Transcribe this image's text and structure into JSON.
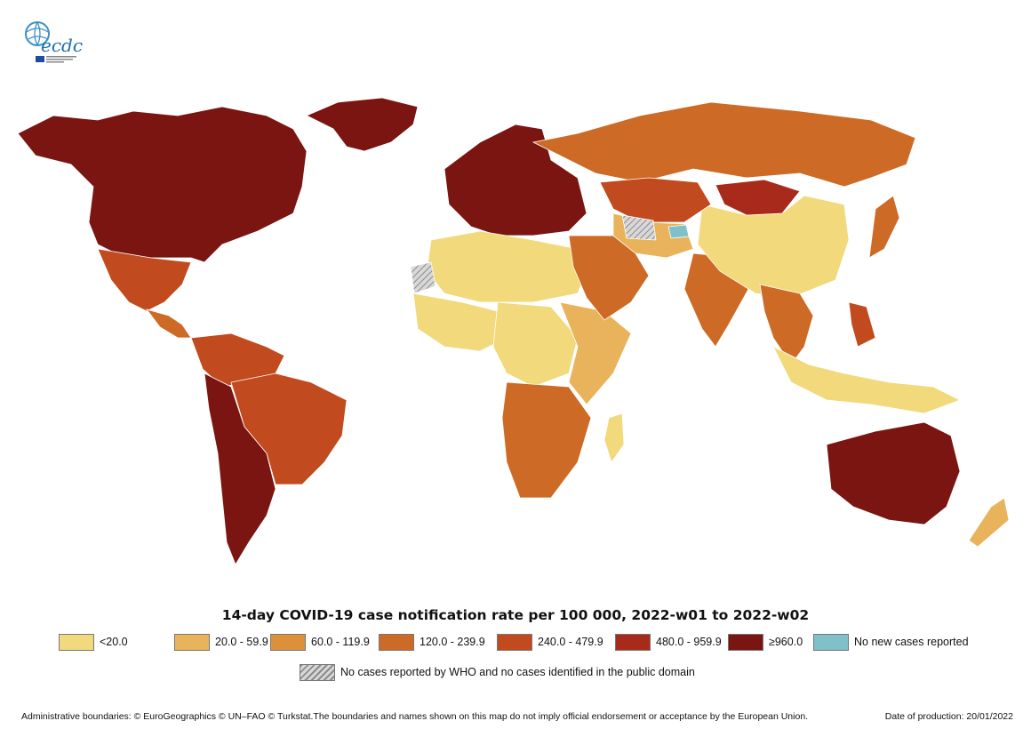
{
  "logo": {
    "text": "ecdc",
    "subtitle": "EUROPEAN CENTRE FOR DISEASE PREVENTION AND CONTROL"
  },
  "map": {
    "title": "14-day COVID-19 case notification rate per 100 000, 2022-w01 to 2022-w02",
    "legend": [
      {
        "label": "<20.0",
        "color": "#f2d97c"
      },
      {
        "label": "20.0 - 59.9",
        "color": "#e8b35a"
      },
      {
        "label": "60.0 - 119.9",
        "color": "#dc9138"
      },
      {
        "label": "120.0 - 239.9",
        "color": "#cd6a25"
      },
      {
        "label": "240.0 - 479.9",
        "color": "#c14a1e"
      },
      {
        "label": "480.0 - 959.9",
        "color": "#a82a1a"
      },
      {
        "label": "≥960.0",
        "color": "#7a1511"
      },
      {
        "label": "No new cases reported",
        "color": "#80c0c8"
      }
    ],
    "no_data_label": "No cases reported by WHO and no cases identified in the public domain",
    "regions": [
      {
        "name": "north-america",
        "class": 6
      },
      {
        "name": "mexico",
        "class": 4
      },
      {
        "name": "central-america",
        "class": 3
      },
      {
        "name": "south-america-north",
        "class": 4
      },
      {
        "name": "brazil",
        "class": 4
      },
      {
        "name": "south-america-south",
        "class": 6
      },
      {
        "name": "greenland",
        "class": 6
      },
      {
        "name": "europe",
        "class": 6
      },
      {
        "name": "russia",
        "class": 3
      },
      {
        "name": "north-africa",
        "class": 0
      },
      {
        "name": "west-africa",
        "class": 0
      },
      {
        "name": "central-africa",
        "class": 0
      },
      {
        "name": "east-africa",
        "class": 1
      },
      {
        "name": "southern-africa",
        "class": 3
      },
      {
        "name": "madagascar",
        "class": 0
      },
      {
        "name": "middle-east",
        "class": 3
      },
      {
        "name": "central-asia",
        "class": 1
      },
      {
        "name": "india",
        "class": 3
      },
      {
        "name": "china",
        "class": 0
      },
      {
        "name": "mongolia",
        "class": 5
      },
      {
        "name": "kazakhstan",
        "class": 4
      },
      {
        "name": "japan",
        "class": 3
      },
      {
        "name": "southeast-asia",
        "class": 3
      },
      {
        "name": "indonesia",
        "class": 0
      },
      {
        "name": "philippines",
        "class": 4
      },
      {
        "name": "australia",
        "class": 6
      },
      {
        "name": "new-zealand",
        "class": 1
      },
      {
        "name": "western-sahara",
        "class": -1
      },
      {
        "name": "turkmenistan",
        "class": -1
      },
      {
        "name": "tajikistan",
        "class": 7
      }
    ]
  },
  "footer": {
    "disclaimer": "Administrative boundaries: © EuroGeographics © UN–FAO © Turkstat.The boundaries and names shown on this map do not imply official endorsement or acceptance by the European Union.",
    "date": "Date of production: 20/01/2022"
  }
}
